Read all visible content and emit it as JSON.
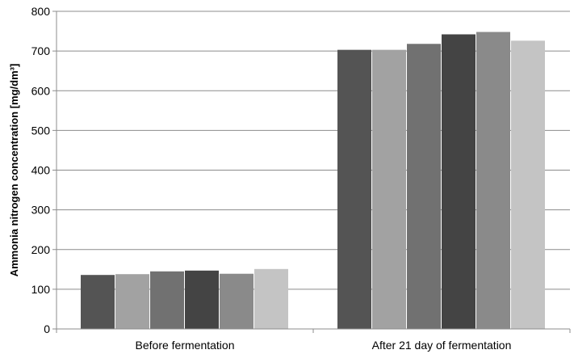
{
  "chart_data": {
    "type": "bar",
    "title": "",
    "xlabel": "",
    "ylabel": "Ammonia nitrogen concentration [mg/dm³]",
    "ylim": [
      0,
      800
    ],
    "yticks": [
      0,
      100,
      200,
      300,
      400,
      500,
      600,
      700,
      800
    ],
    "grid": true,
    "legend": "none",
    "categories": [
      "Before fermentation",
      "After 21 day of fermentation"
    ],
    "series": [
      {
        "color": "#545454",
        "values": [
          136,
          703
        ]
      },
      {
        "color": "#a2a2a2",
        "values": [
          138,
          703
        ]
      },
      {
        "color": "#717171",
        "values": [
          145,
          718
        ]
      },
      {
        "color": "#444444",
        "values": [
          147,
          742
        ]
      },
      {
        "color": "#8a8a8a",
        "values": [
          139,
          748
        ]
      },
      {
        "color": "#c4c4c4",
        "values": [
          151,
          726
        ]
      }
    ]
  }
}
